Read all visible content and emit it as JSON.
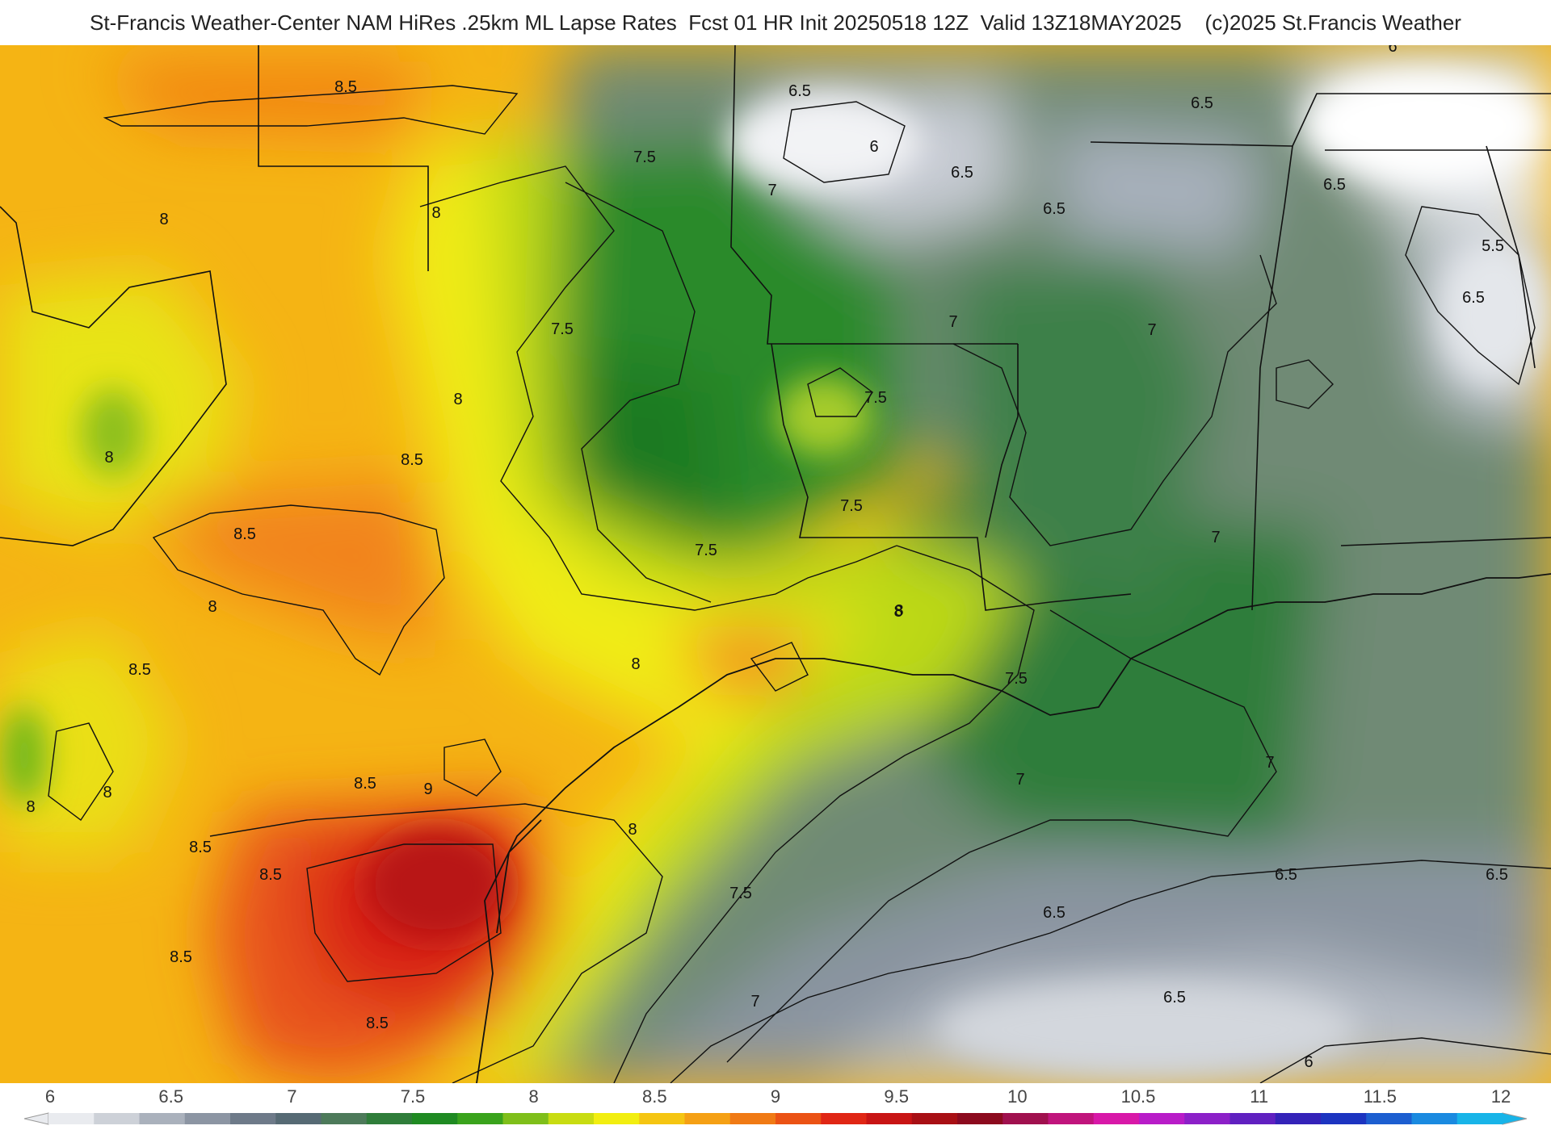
{
  "title": "St-Francis Weather-Center NAM HiRes .25km ML Lapse Rates  Fcst 01 HR Init 20250518 12Z  Valid 13Z18MAY2025    (c)2025 St.Francis Weather",
  "colorbar": {
    "ticks": [
      "6",
      "6.5",
      "7",
      "7.5",
      "8",
      "8.5",
      "9",
      "9.5",
      "10",
      "10.5",
      "11",
      "11.5",
      "12"
    ],
    "colors": [
      "#e9ebef",
      "#cdd1d8",
      "#aab1bc",
      "#8c95a3",
      "#6e7a89",
      "#566a74",
      "#4d7a5a",
      "#2f7d3a",
      "#1f8a22",
      "#3aa31c",
      "#7fbf1a",
      "#c8dc12",
      "#f2ee10",
      "#f5c512",
      "#f5a014",
      "#f07a14",
      "#eb5214",
      "#e02614",
      "#c81414",
      "#a80f14",
      "#8c0a1e",
      "#a0104e",
      "#c0147c",
      "#d818a8",
      "#b81cc8",
      "#8c20c8",
      "#6020c0",
      "#3422b8",
      "#1c34c0",
      "#1c5ed0",
      "#1a8ae0",
      "#18b4e8"
    ]
  },
  "contour_labels": [
    {
      "text": "8.5"
    },
    {
      "text": "8"
    },
    {
      "text": "8"
    },
    {
      "text": "8"
    },
    {
      "text": "8"
    },
    {
      "text": "8.5"
    },
    {
      "text": "8.5"
    },
    {
      "text": "8"
    },
    {
      "text": "8"
    },
    {
      "text": "8"
    },
    {
      "text": "8.5"
    },
    {
      "text": "9"
    },
    {
      "text": "8.5"
    },
    {
      "text": "8.5"
    },
    {
      "text": "8.5"
    },
    {
      "text": "8.5"
    },
    {
      "text": "8.5"
    },
    {
      "text": "8"
    },
    {
      "text": "8"
    },
    {
      "text": "8"
    },
    {
      "text": "7.5"
    },
    {
      "text": "7.5"
    },
    {
      "text": "7.5"
    },
    {
      "text": "7.5"
    },
    {
      "text": "7.5"
    },
    {
      "text": "7.5"
    },
    {
      "text": "7.5"
    },
    {
      "text": "7"
    },
    {
      "text": "7"
    },
    {
      "text": "7"
    },
    {
      "text": "7"
    },
    {
      "text": "7"
    },
    {
      "text": "7"
    },
    {
      "text": "7"
    },
    {
      "text": "6.5"
    },
    {
      "text": "6"
    },
    {
      "text": "6.5"
    },
    {
      "text": "6.5"
    },
    {
      "text": "6.5"
    },
    {
      "text": "6"
    },
    {
      "text": "6.5"
    },
    {
      "text": "5.5"
    },
    {
      "text": "6.5"
    },
    {
      "text": "6.5"
    },
    {
      "text": "6.5"
    },
    {
      "text": "6.5"
    },
    {
      "text": "6.5"
    },
    {
      "text": "6"
    },
    {
      "text": "8"
    }
  ]
}
